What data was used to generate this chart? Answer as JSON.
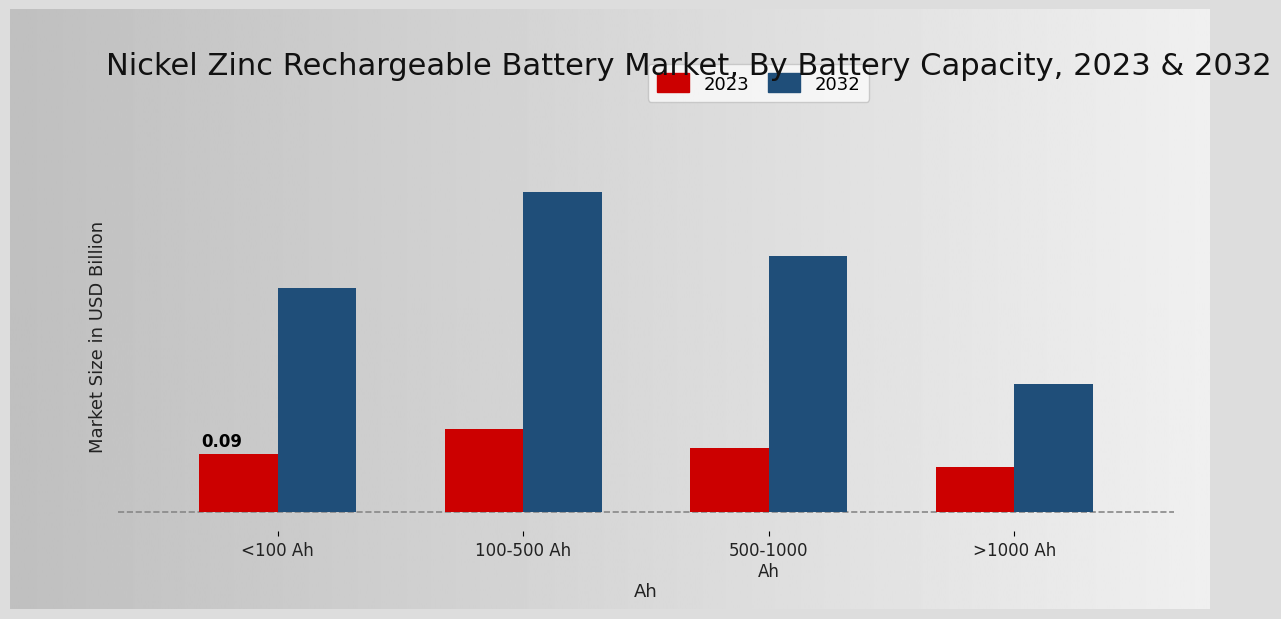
{
  "title": "Nickel Zinc Rechargeable Battery Market, By Battery Capacity, 2023 & 2032",
  "xlabel": "Ah",
  "ylabel": "Market Size in USD Billion",
  "values_2023": [
    0.09,
    0.13,
    0.1,
    0.07
  ],
  "values_2032": [
    0.35,
    0.5,
    0.4,
    0.2
  ],
  "color_2023": "#cc0000",
  "color_2032": "#1f4e79",
  "bar_width": 0.32,
  "annotation_text": "0.09",
  "bg_left": "#c8c8c8",
  "bg_right": "#f0f0f0",
  "title_fontsize": 22,
  "axis_label_fontsize": 13,
  "tick_fontsize": 12,
  "legend_fontsize": 13,
  "ylim_min": -0.03,
  "ylim_max": 0.58
}
